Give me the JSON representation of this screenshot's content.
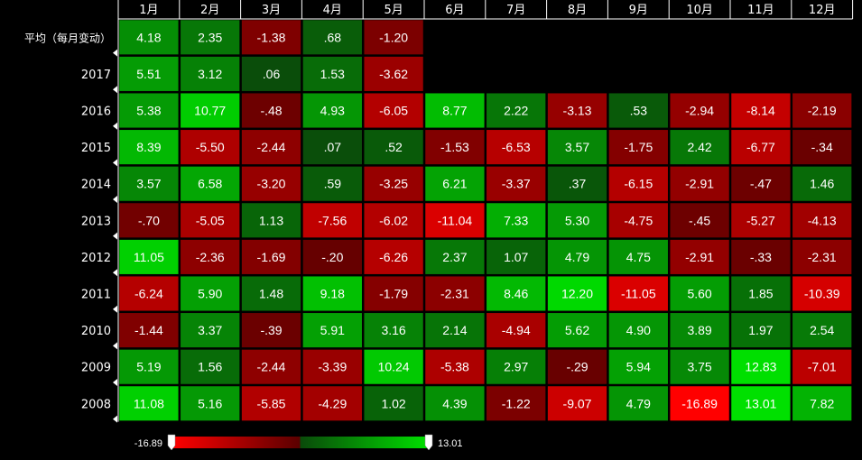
{
  "chart_data": {
    "type": "heatmap",
    "x_categories": [
      "1月",
      "2月",
      "3月",
      "4月",
      "5月",
      "6月",
      "7月",
      "8月",
      "9月",
      "10月",
      "11月",
      "12月"
    ],
    "y_categories": [
      "平均（每月变动）",
      "2017",
      "2016",
      "2015",
      "2014",
      "2013",
      "2012",
      "2011",
      "2010",
      "2009",
      "2008"
    ],
    "values": [
      [
        "4.18",
        "2.35",
        "-1.38",
        ".68",
        "-1.20",
        null,
        null,
        null,
        null,
        null,
        null,
        null
      ],
      [
        "5.51",
        "3.12",
        ".06",
        "1.53",
        "-3.62",
        null,
        null,
        null,
        null,
        null,
        null,
        null
      ],
      [
        "5.38",
        "10.77",
        "-.48",
        "4.93",
        "-6.05",
        "8.77",
        "2.22",
        "-3.13",
        ".53",
        "-2.94",
        "-8.14",
        "-2.19"
      ],
      [
        "8.39",
        "-5.50",
        "-2.44",
        ".07",
        ".52",
        "-1.53",
        "-6.53",
        "3.57",
        "-1.75",
        "2.42",
        "-6.77",
        "-.34"
      ],
      [
        "3.57",
        "6.58",
        "-3.20",
        ".59",
        "-3.25",
        "6.21",
        "-3.37",
        ".37",
        "-6.15",
        "-2.91",
        "-.47",
        "1.46"
      ],
      [
        "-.70",
        "-5.05",
        "1.13",
        "-7.56",
        "-6.02",
        "-11.04",
        "7.33",
        "5.30",
        "-4.75",
        "-.45",
        "-5.27",
        "-4.13"
      ],
      [
        "11.05",
        "-2.36",
        "-1.69",
        "-.20",
        "-6.26",
        "2.37",
        "1.07",
        "4.79",
        "4.75",
        "-2.91",
        "-.33",
        "-2.31"
      ],
      [
        "-6.24",
        "5.90",
        "1.48",
        "9.18",
        "-1.79",
        "-2.31",
        "8.46",
        "12.20",
        "-11.05",
        "5.60",
        "1.85",
        "-10.39"
      ],
      [
        "-1.44",
        "3.37",
        "-.39",
        "5.91",
        "3.16",
        "2.14",
        "-4.94",
        "5.62",
        "4.90",
        "3.89",
        "1.97",
        "2.54"
      ],
      [
        "5.19",
        "1.56",
        "-2.44",
        "-3.39",
        "10.24",
        "-5.38",
        "2.97",
        "-.29",
        "5.94",
        "3.75",
        "12.83",
        "-7.01"
      ],
      [
        "11.08",
        "5.16",
        "-5.85",
        "-4.29",
        "1.02",
        "4.39",
        "-1.22",
        "-9.07",
        "4.79",
        "-16.89",
        "13.01",
        "7.82"
      ]
    ],
    "color_scale": {
      "min": -16.89,
      "max": 13.01,
      "min_label": "-16.89",
      "max_label": "13.01",
      "negative_colors": [
        "#ff0000",
        "#5a0000"
      ],
      "positive_colors": [
        "#0a4a0a",
        "#00e000"
      ]
    }
  }
}
